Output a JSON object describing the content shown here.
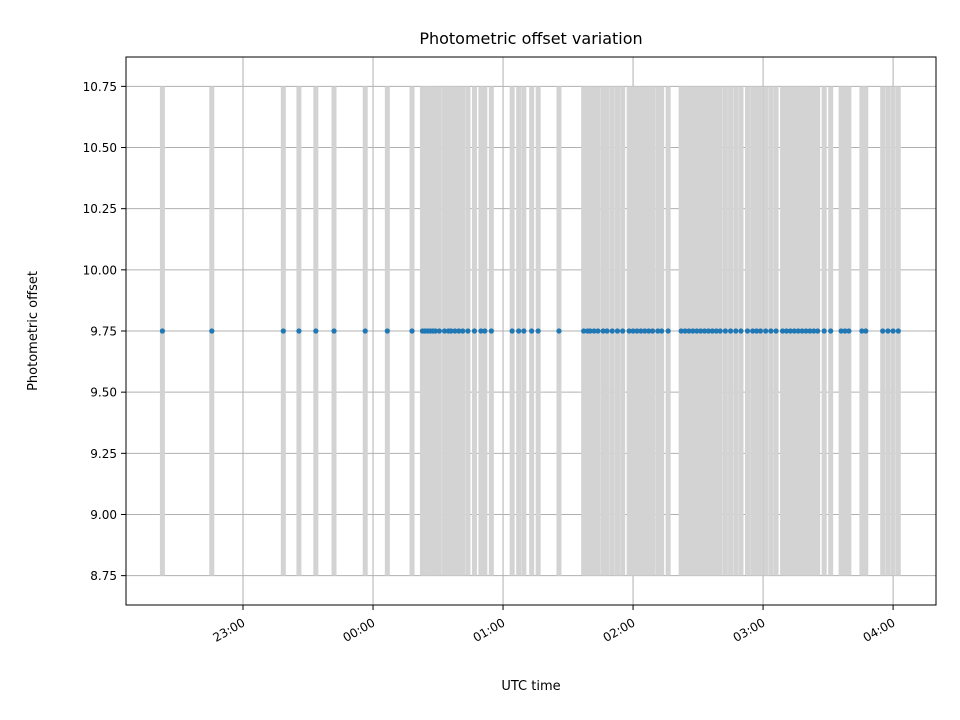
{
  "chart_data": {
    "type": "scatter",
    "title": "Photometric offset variation",
    "xlabel": "UTC time",
    "ylabel": "Photometric offset",
    "x_tick_labels": [
      "23:00",
      "00:00",
      "01:00",
      "02:00",
      "03:00",
      "04:00"
    ],
    "x_tick_hours": [
      23,
      24,
      25,
      26,
      27,
      28
    ],
    "y_ticks": [
      8.75,
      9.0,
      9.25,
      9.5,
      9.75,
      10.0,
      10.25,
      10.5,
      10.75
    ],
    "y_tick_labels": [
      "8.75",
      "9.00",
      "9.25",
      "9.50",
      "9.75",
      "10.00",
      "10.25",
      "10.50",
      "10.75"
    ],
    "xlim_hours": [
      22.1,
      28.33
    ],
    "ylim": [
      8.63,
      10.87
    ],
    "grid": true,
    "marker_color": "#1f77b4",
    "errorbar_color": "#d3d3d3",
    "series": [
      {
        "offset": 9.75,
        "error_low": 8.75,
        "error_high": 10.75,
        "time_hours": [
          22.38,
          22.76,
          23.31,
          23.43,
          23.56,
          23.7,
          23.94,
          24.11,
          24.3,
          24.38,
          24.4,
          24.42,
          24.44,
          24.46,
          24.48,
          24.51,
          24.55,
          24.58,
          24.6,
          24.63,
          24.66,
          24.69,
          24.73,
          24.78,
          24.83,
          24.86,
          24.91,
          25.07,
          25.12,
          25.16,
          25.22,
          25.27,
          25.43,
          25.62,
          25.65,
          25.67,
          25.7,
          25.73,
          25.77,
          25.8,
          25.84,
          25.88,
          25.92,
          25.97,
          26.0,
          26.03,
          26.06,
          26.09,
          26.12,
          26.15,
          26.19,
          26.22,
          26.27,
          26.37,
          26.4,
          26.43,
          26.46,
          26.49,
          26.52,
          26.55,
          26.58,
          26.61,
          26.64,
          26.67,
          26.71,
          26.75,
          26.79,
          26.83,
          26.88,
          26.92,
          26.95,
          26.98,
          27.02,
          27.06,
          27.1,
          27.15,
          27.18,
          27.21,
          27.24,
          27.27,
          27.3,
          27.33,
          27.36,
          27.39,
          27.42,
          27.47,
          27.52,
          27.6,
          27.63,
          27.66,
          27.76,
          27.79,
          27.92,
          27.96,
          28.0,
          28.04
        ]
      }
    ]
  }
}
